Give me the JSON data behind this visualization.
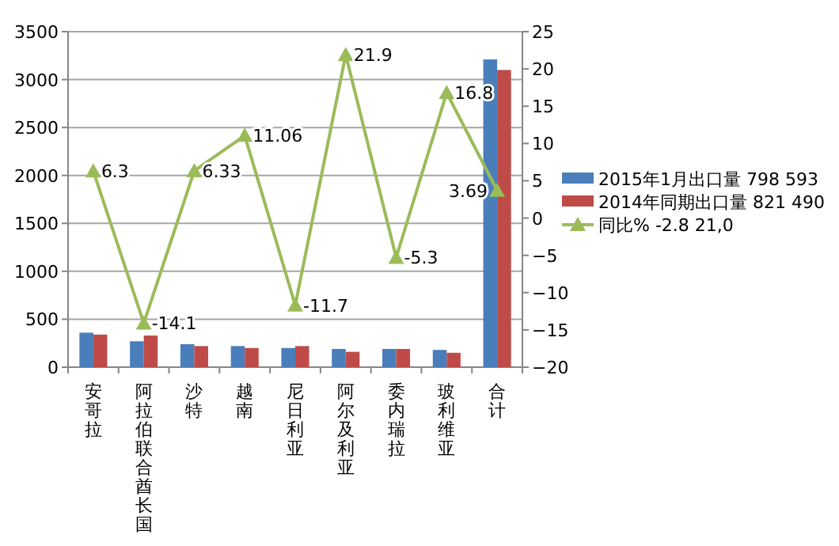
{
  "chart_data": {
    "type": "bar",
    "categories": [
      "安哥拉",
      "阿拉伯联合酋长国",
      "沙特",
      "越南",
      "尼日利亚",
      "阿尔及利亚",
      "委内瑞拉",
      "玻利维亚",
      "合计"
    ],
    "series": [
      {
        "name": "2015年1月出口量 798 593",
        "color": "#4a7ebb",
        "values": [
          360,
          270,
          240,
          220,
          200,
          190,
          190,
          180,
          3210
        ]
      },
      {
        "name": "2014年同期出口量 821 490",
        "color": "#be4b48",
        "values": [
          340,
          330,
          220,
          200,
          220,
          160,
          190,
          150,
          3100
        ]
      },
      {
        "name": "同比% -2.8 21,0",
        "type": "line",
        "axis": "y2",
        "color": "#9bbb59",
        "marker": "triangle",
        "values": [
          6.3,
          -14.1,
          6.33,
          11.06,
          -11.7,
          21.9,
          -5.3,
          16.8,
          3.69
        ],
        "value_labels": [
          "6.3",
          "-14.1",
          "6.33",
          "11.06",
          "-11.7",
          "21.9",
          "-5.3",
          "16.8",
          "3.69"
        ]
      }
    ],
    "ylim": [
      0,
      3500
    ],
    "yticks": [
      0,
      500,
      1000,
      1500,
      2000,
      2500,
      3000,
      3500
    ],
    "y2lim": [
      -20,
      25
    ],
    "y2ticks": [
      -20,
      -15,
      -10,
      -5,
      0,
      5,
      10,
      15,
      20,
      25
    ],
    "grid": "y",
    "legend": "right"
  }
}
